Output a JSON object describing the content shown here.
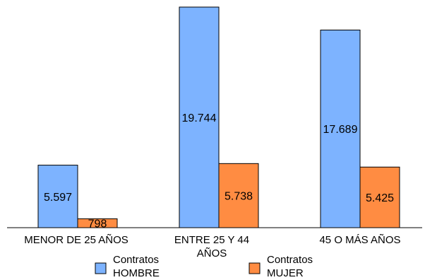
{
  "chart_data": {
    "type": "bar",
    "categories": [
      "MENOR DE 25 AÑOS",
      "ENTRE 25 Y 44 AÑOS",
      "45 O MÁS AÑOS"
    ],
    "category_labels": [
      [
        "MENOR DE 25 AÑOS"
      ],
      [
        "ENTRE 25 Y 44",
        "AÑOS"
      ],
      [
        "45 O MÁS AÑOS"
      ]
    ],
    "series": [
      {
        "name": "Contratos HOMBRE",
        "legend_lines": [
          "Contratos",
          "HOMBRE"
        ],
        "color": "#7db3ff",
        "values": [
          5597,
          19744,
          17689
        ],
        "labels": [
          "5.597",
          "19.744",
          "17.689"
        ]
      },
      {
        "name": "Contratos MUJER",
        "legend_lines": [
          "Contratos",
          "MUJER"
        ],
        "color": "#ff8c42",
        "values": [
          798,
          5738,
          5425
        ],
        "labels": [
          "798",
          "5.738",
          "5.425"
        ]
      }
    ],
    "title": "",
    "xlabel": "",
    "ylabel": "",
    "ylim": [
      0,
      20000
    ],
    "grid": false,
    "legend": "bottom"
  }
}
